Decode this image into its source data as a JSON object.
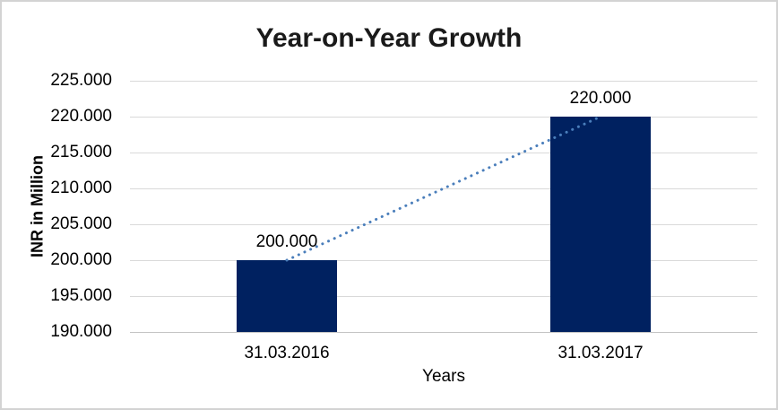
{
  "frame": {
    "background": "#ffffff",
    "border_color": "#d3d3d3"
  },
  "chart_data": {
    "type": "bar",
    "title": "Year-on-Year Growth",
    "xlabel": "Years",
    "ylabel": "INR in Million",
    "categories": [
      "31.03.2016",
      "31.03.2017"
    ],
    "values": [
      200000,
      220000
    ],
    "data_labels": [
      "200.000",
      "220.000"
    ],
    "ylim": [
      190000,
      225000
    ],
    "ytick_step": 5000,
    "ytick_labels": [
      "225.000",
      "220.000",
      "215.000",
      "210.000",
      "205.000",
      "200.000",
      "195.000",
      "190.000"
    ],
    "grid": true,
    "legend": "none",
    "bar_color": "#002160",
    "gridline_color": "#d9d9d9",
    "axis_line_color": "#c3c3c3",
    "trendline": {
      "style": "dotted",
      "color": "#4a7ebb",
      "from_category": "31.03.2016",
      "from_value": 200000,
      "to_category": "31.03.2017",
      "to_value": 220000
    }
  }
}
